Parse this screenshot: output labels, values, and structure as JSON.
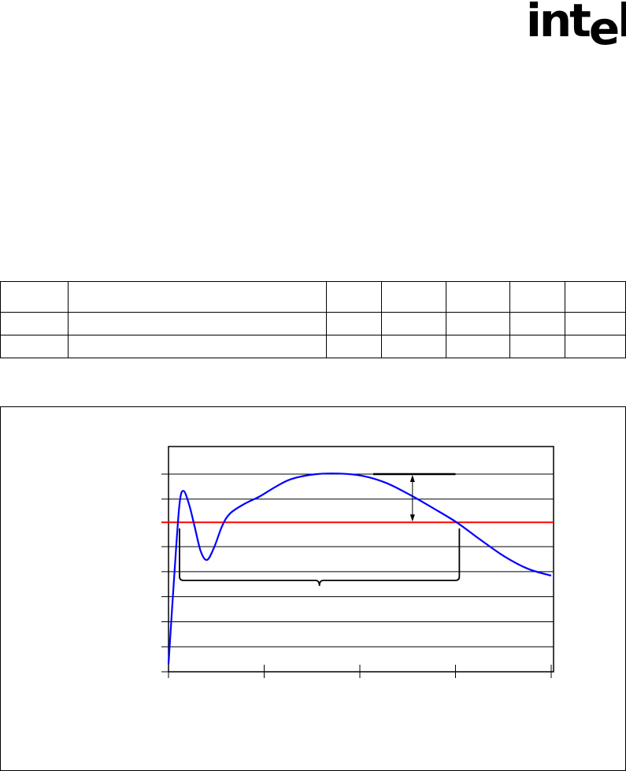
{
  "logo": {
    "text": "intel",
    "registered": "®"
  },
  "table": {
    "columns": 7,
    "rows": 3
  },
  "chart_data": {
    "type": "line",
    "title": "",
    "xlabel": "",
    "ylabel": "",
    "xlim": [
      0,
      4
    ],
    "ylim": [
      0,
      9
    ],
    "x_ticks": [
      0,
      1,
      2,
      3,
      4
    ],
    "y_gridlines": [
      0,
      1,
      2,
      3,
      4,
      5,
      6.9,
      7.9
    ],
    "grid": true,
    "series": [
      {
        "color": "#0000ff",
        "x": [
          0,
          0.066,
          0.115,
          0.156,
          0.214,
          0.272,
          0.337,
          0.403,
          0.477,
          0.56,
          0.642,
          0.79,
          0.955,
          1.119,
          1.284,
          1.531,
          1.778,
          2.025,
          2.272,
          2.519,
          2.765,
          3.012,
          3.259,
          3.506,
          3.753,
          4
        ],
        "y": [
          0.31,
          4.18,
          6.7,
          7.23,
          6.7,
          5.82,
          4.81,
          4.47,
          4.97,
          5.82,
          6.32,
          6.7,
          7.01,
          7.39,
          7.7,
          7.89,
          7.92,
          7.83,
          7.55,
          7.08,
          6.54,
          5.97,
          5.28,
          4.62,
          4.12,
          3.84
        ]
      }
    ],
    "reference_line": {
      "y": 5.97,
      "color": "#ff0000"
    },
    "limit_line": {
      "y": 7.9,
      "x_range": [
        2.14,
        3.0
      ]
    },
    "annotations": {
      "double_arrow_x": 2.55,
      "brace_x_range": [
        0.115,
        3.04
      ]
    }
  }
}
